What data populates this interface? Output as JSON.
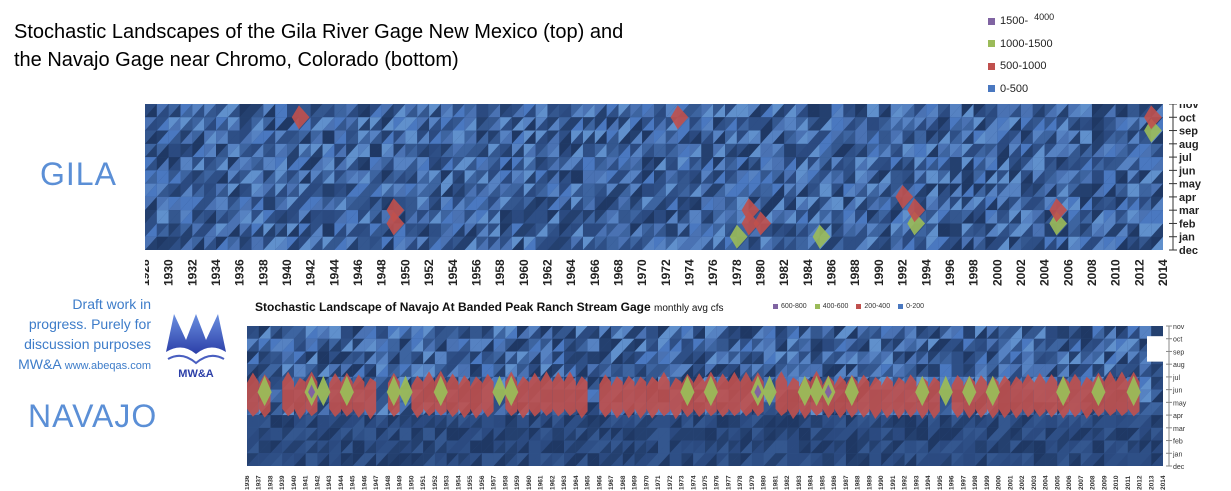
{
  "title_line1": "Stochastic Landscapes of the Gila River Gage New Mexico (top) and",
  "title_line2_a": "the Navajo Gage near Chromo, Colorad",
  "title_line2_b": "o (bottom)",
  "gila_label": "GILA",
  "navajo_label": "NAVAJO",
  "draft_note": {
    "line1": "Draft work in",
    "line2": "progress.  Purely for",
    "line3": "discussion purposes",
    "line4_a": "MW&A ",
    "line4_b": "www.abeqas.com"
  },
  "logo_text": "MW&A",
  "colors": {
    "dark_blue": "#1f3864",
    "blue": "#4a78c0",
    "red": "#c0504d",
    "green": "#9bbb59",
    "purple": "#8064a2"
  },
  "chart_data": [
    {
      "type": "heatmap",
      "name": "gila",
      "x_start": 1928,
      "x_end": 2014,
      "x_tick_labels": [
        "1928",
        "1930",
        "1932",
        "1934",
        "1936",
        "1938",
        "1940",
        "1942",
        "1944",
        "1946",
        "1948",
        "1950",
        "1952",
        "1954",
        "1956",
        "1958",
        "1960",
        "1962",
        "1964",
        "1966",
        "1968",
        "1970",
        "1972",
        "1974",
        "1976",
        "1978",
        "1980",
        "1982",
        "1984",
        "1986",
        "1988",
        "1990",
        "1992",
        "1994",
        "1996",
        "1998",
        "2000",
        "2002",
        "2004",
        "2006",
        "2008",
        "2010",
        "2012",
        "2014"
      ],
      "y_labels": [
        "nov",
        "oct",
        "sep",
        "aug",
        "jul",
        "jun",
        "may",
        "apr",
        "mar",
        "feb",
        "jan",
        "dec"
      ],
      "legend": [
        {
          "label": "1500-",
          "suffix": "4000",
          "color": "#8064a2"
        },
        {
          "label": "1000-1500",
          "color": "#9bbb59"
        },
        {
          "label": "500-1000",
          "color": "#c0504d"
        },
        {
          "label": "0-500",
          "color": "#4a78c0"
        }
      ],
      "highlights": [
        {
          "year": 1941,
          "month": "oct",
          "level": "500-1000"
        },
        {
          "year": 1949,
          "month": "feb",
          "level": "500-1000"
        },
        {
          "year": 1949,
          "month": "mar",
          "level": "500-1000"
        },
        {
          "year": 1973,
          "month": "oct",
          "level": "500-1000"
        },
        {
          "year": 1979,
          "month": "mar",
          "level": "500-1000"
        },
        {
          "year": 1979,
          "month": "feb",
          "level": "500-1000"
        },
        {
          "year": 1980,
          "month": "feb",
          "level": "500-1000"
        },
        {
          "year": 1992,
          "month": "apr",
          "level": "500-1000"
        },
        {
          "year": 1993,
          "month": "feb",
          "level": "1000-1500"
        },
        {
          "year": 1993,
          "month": "mar",
          "level": "500-1000"
        },
        {
          "year": 2005,
          "month": "feb",
          "level": "1000-1500"
        },
        {
          "year": 2005,
          "month": "mar",
          "level": "500-1000"
        },
        {
          "year": 2013,
          "month": "sep",
          "level": "1000-1500"
        },
        {
          "year": 2013,
          "month": "oct",
          "level": "500-1000"
        },
        {
          "year": 1985,
          "month": "jan",
          "level": "1000-1500"
        },
        {
          "year": 1978,
          "month": "jan",
          "level": "1000-1500"
        }
      ]
    },
    {
      "type": "heatmap",
      "name": "navajo",
      "title": "Stochastic Landscape of Navajo At Banded Peak Ranch Stream Gage",
      "subtitle": "monthly avg cfs",
      "x_start": 1936,
      "x_end": 2014,
      "x_tick_labels": [
        "1936",
        "1937",
        "1938",
        "1939",
        "1940",
        "1941",
        "1942",
        "1943",
        "1944",
        "1945",
        "1946",
        "1947",
        "1948",
        "1949",
        "1950",
        "1951",
        "1952",
        "1953",
        "1954",
        "1955",
        "1956",
        "1957",
        "1958",
        "1959",
        "1960",
        "1961",
        "1962",
        "1963",
        "1964",
        "1965",
        "1966",
        "1967",
        "1968",
        "1969",
        "1970",
        "1971",
        "1972",
        "1973",
        "1974",
        "1975",
        "1976",
        "1977",
        "1978",
        "1979",
        "1980",
        "1981",
        "1982",
        "1983",
        "1984",
        "1985",
        "1986",
        "1987",
        "1988",
        "1989",
        "1990",
        "1991",
        "1992",
        "1993",
        "1994",
        "1995",
        "1996",
        "1997",
        "1998",
        "1999",
        "2000",
        "2001",
        "2002",
        "2003",
        "2004",
        "2005",
        "2006",
        "2007",
        "2008",
        "2009",
        "2010",
        "2011",
        "2012",
        "2013",
        "2014"
      ],
      "y_labels": [
        "nov",
        "oct",
        "sep",
        "aug",
        "jul",
        "jun",
        "may",
        "apr",
        "mar",
        "feb",
        "jan",
        "dec"
      ],
      "legend": [
        {
          "label": "600-800",
          "color": "#8064a2"
        },
        {
          "label": "400-600",
          "color": "#9bbb59"
        },
        {
          "label": "200-400",
          "color": "#c0504d"
        },
        {
          "label": "0-200",
          "color": "#4a78c0"
        }
      ],
      "wet_years": [
        1937,
        1941,
        1942,
        1944,
        1948,
        1949,
        1952,
        1957,
        1958,
        1973,
        1975,
        1979,
        1980,
        1983,
        1984,
        1985,
        1987,
        1993,
        1995,
        1997,
        1999,
        2005,
        2008,
        2011
      ]
    }
  ]
}
